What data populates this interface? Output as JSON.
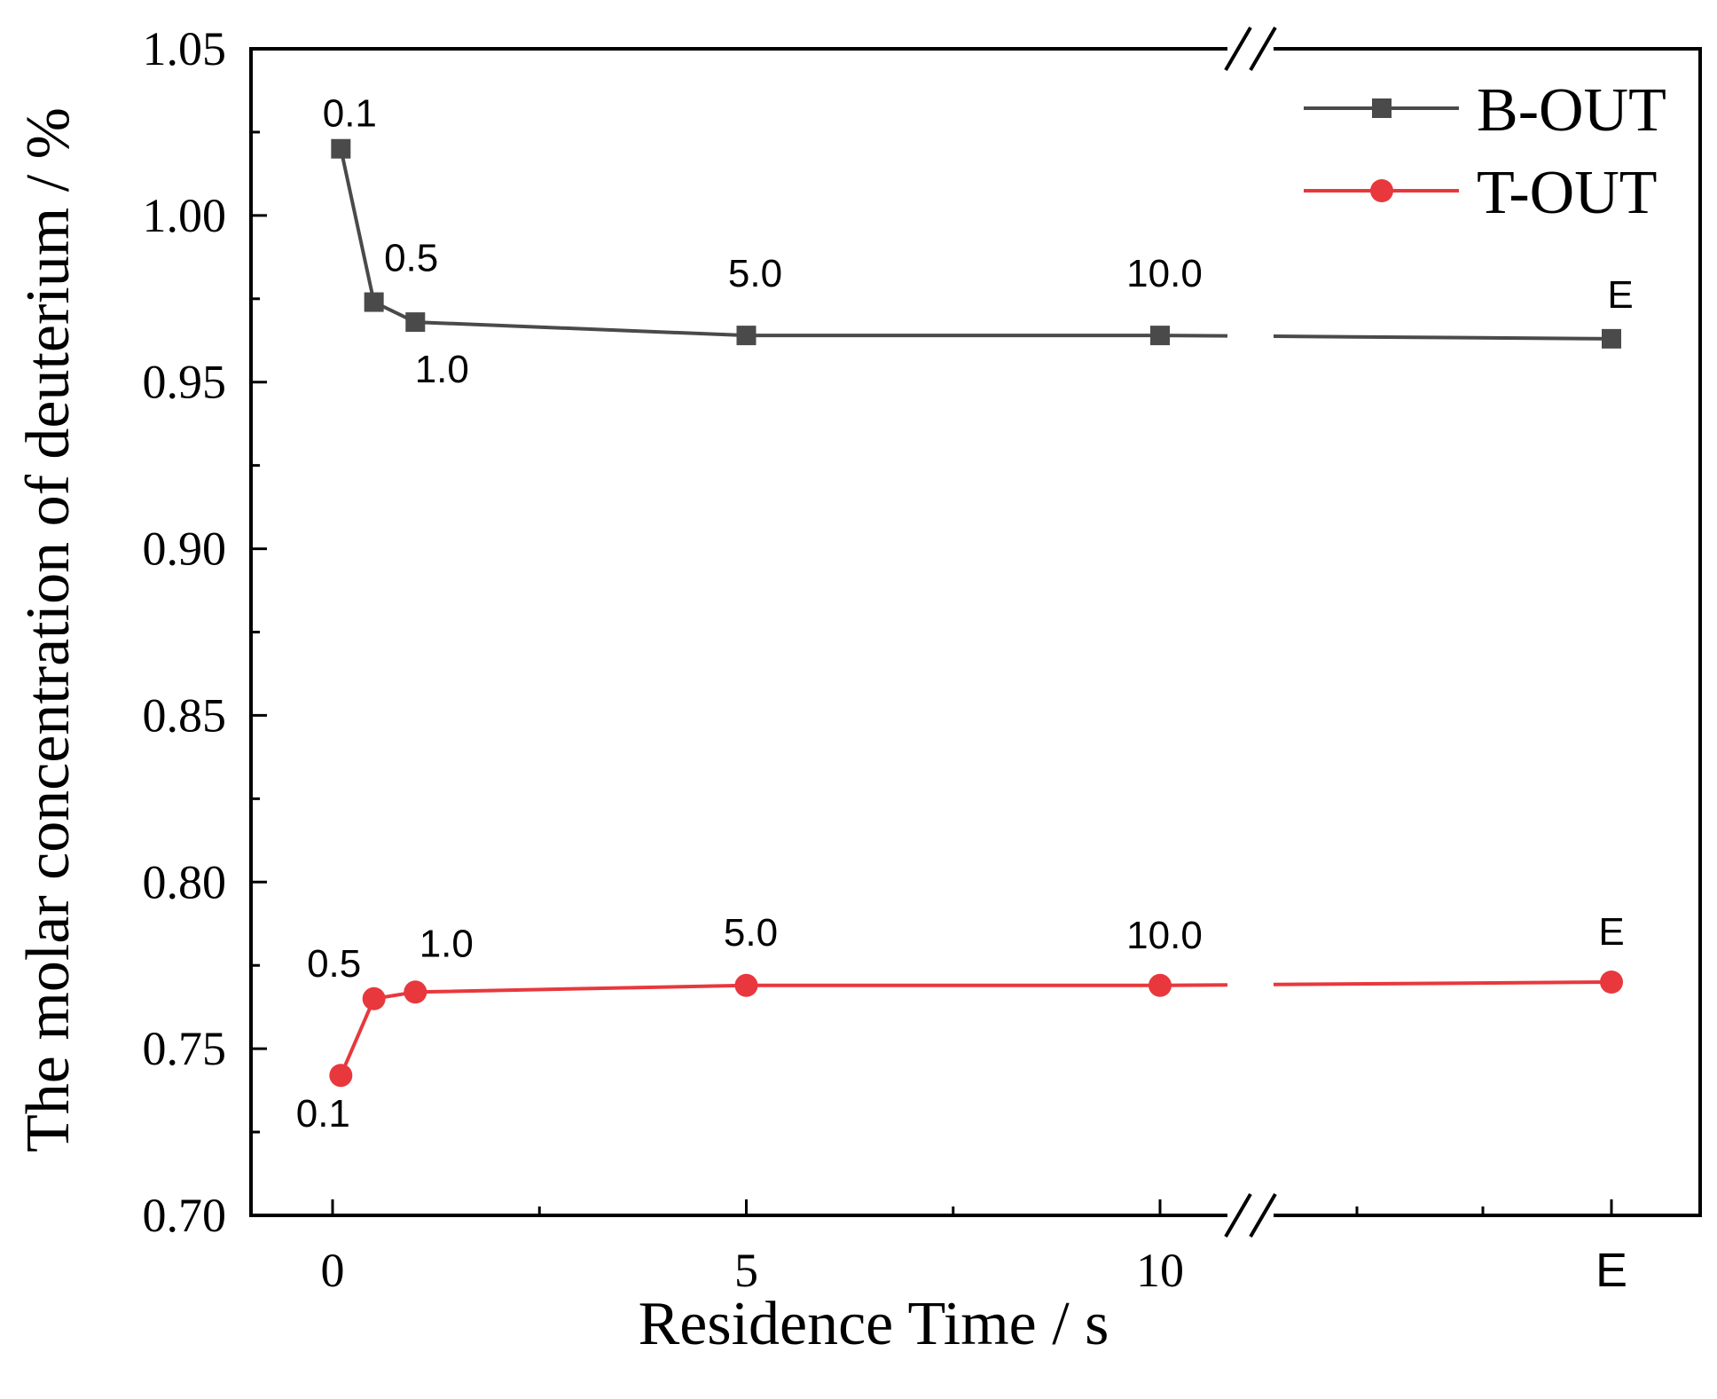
{
  "chart_data": {
    "type": "line",
    "xlabel": "Residence Time / s",
    "ylabel": "The molar concentration of deuterium / %",
    "ylim": [
      0.7,
      1.05
    ],
    "xlim_main": [
      -0.7,
      11.5
    ],
    "x_break_after": 10,
    "x_ticks": [
      {
        "label": "0",
        "value": 0
      },
      {
        "label": "5",
        "value": 5
      },
      {
        "label": "10",
        "value": 10
      },
      {
        "label": "E",
        "value": "E"
      }
    ],
    "y_ticks": [
      "0.70",
      "0.75",
      "0.80",
      "0.85",
      "0.90",
      "0.95",
      "1.00",
      "1.05"
    ],
    "y_tick_values": [
      0.7,
      0.75,
      0.8,
      0.85,
      0.9,
      0.95,
      1.0,
      1.05
    ],
    "grid": false,
    "legend_position": "top-right",
    "series": [
      {
        "name": "B-OUT",
        "color": "#4a4a4a",
        "marker": "square",
        "points": [
          {
            "x": 0.1,
            "y": 1.02,
            "label": "0.1"
          },
          {
            "x": 0.5,
            "y": 0.974,
            "label": "0.5"
          },
          {
            "x": 1.0,
            "y": 0.968,
            "label": "1.0"
          },
          {
            "x": 5.0,
            "y": 0.964,
            "label": "5.0"
          },
          {
            "x": 10.0,
            "y": 0.964,
            "label": "10.0"
          },
          {
            "x": "E",
            "y": 0.963,
            "label": "E"
          }
        ]
      },
      {
        "name": "T-OUT",
        "color": "#e8383d",
        "marker": "circle",
        "points": [
          {
            "x": 0.1,
            "y": 0.742,
            "label": "0.1"
          },
          {
            "x": 0.5,
            "y": 0.765,
            "label": "0.5"
          },
          {
            "x": 1.0,
            "y": 0.767,
            "label": "1.0"
          },
          {
            "x": 5.0,
            "y": 0.769,
            "label": "5.0"
          },
          {
            "x": 10.0,
            "y": 0.769,
            "label": "10.0"
          },
          {
            "x": "E",
            "y": 0.77,
            "label": "E"
          }
        ]
      }
    ]
  }
}
